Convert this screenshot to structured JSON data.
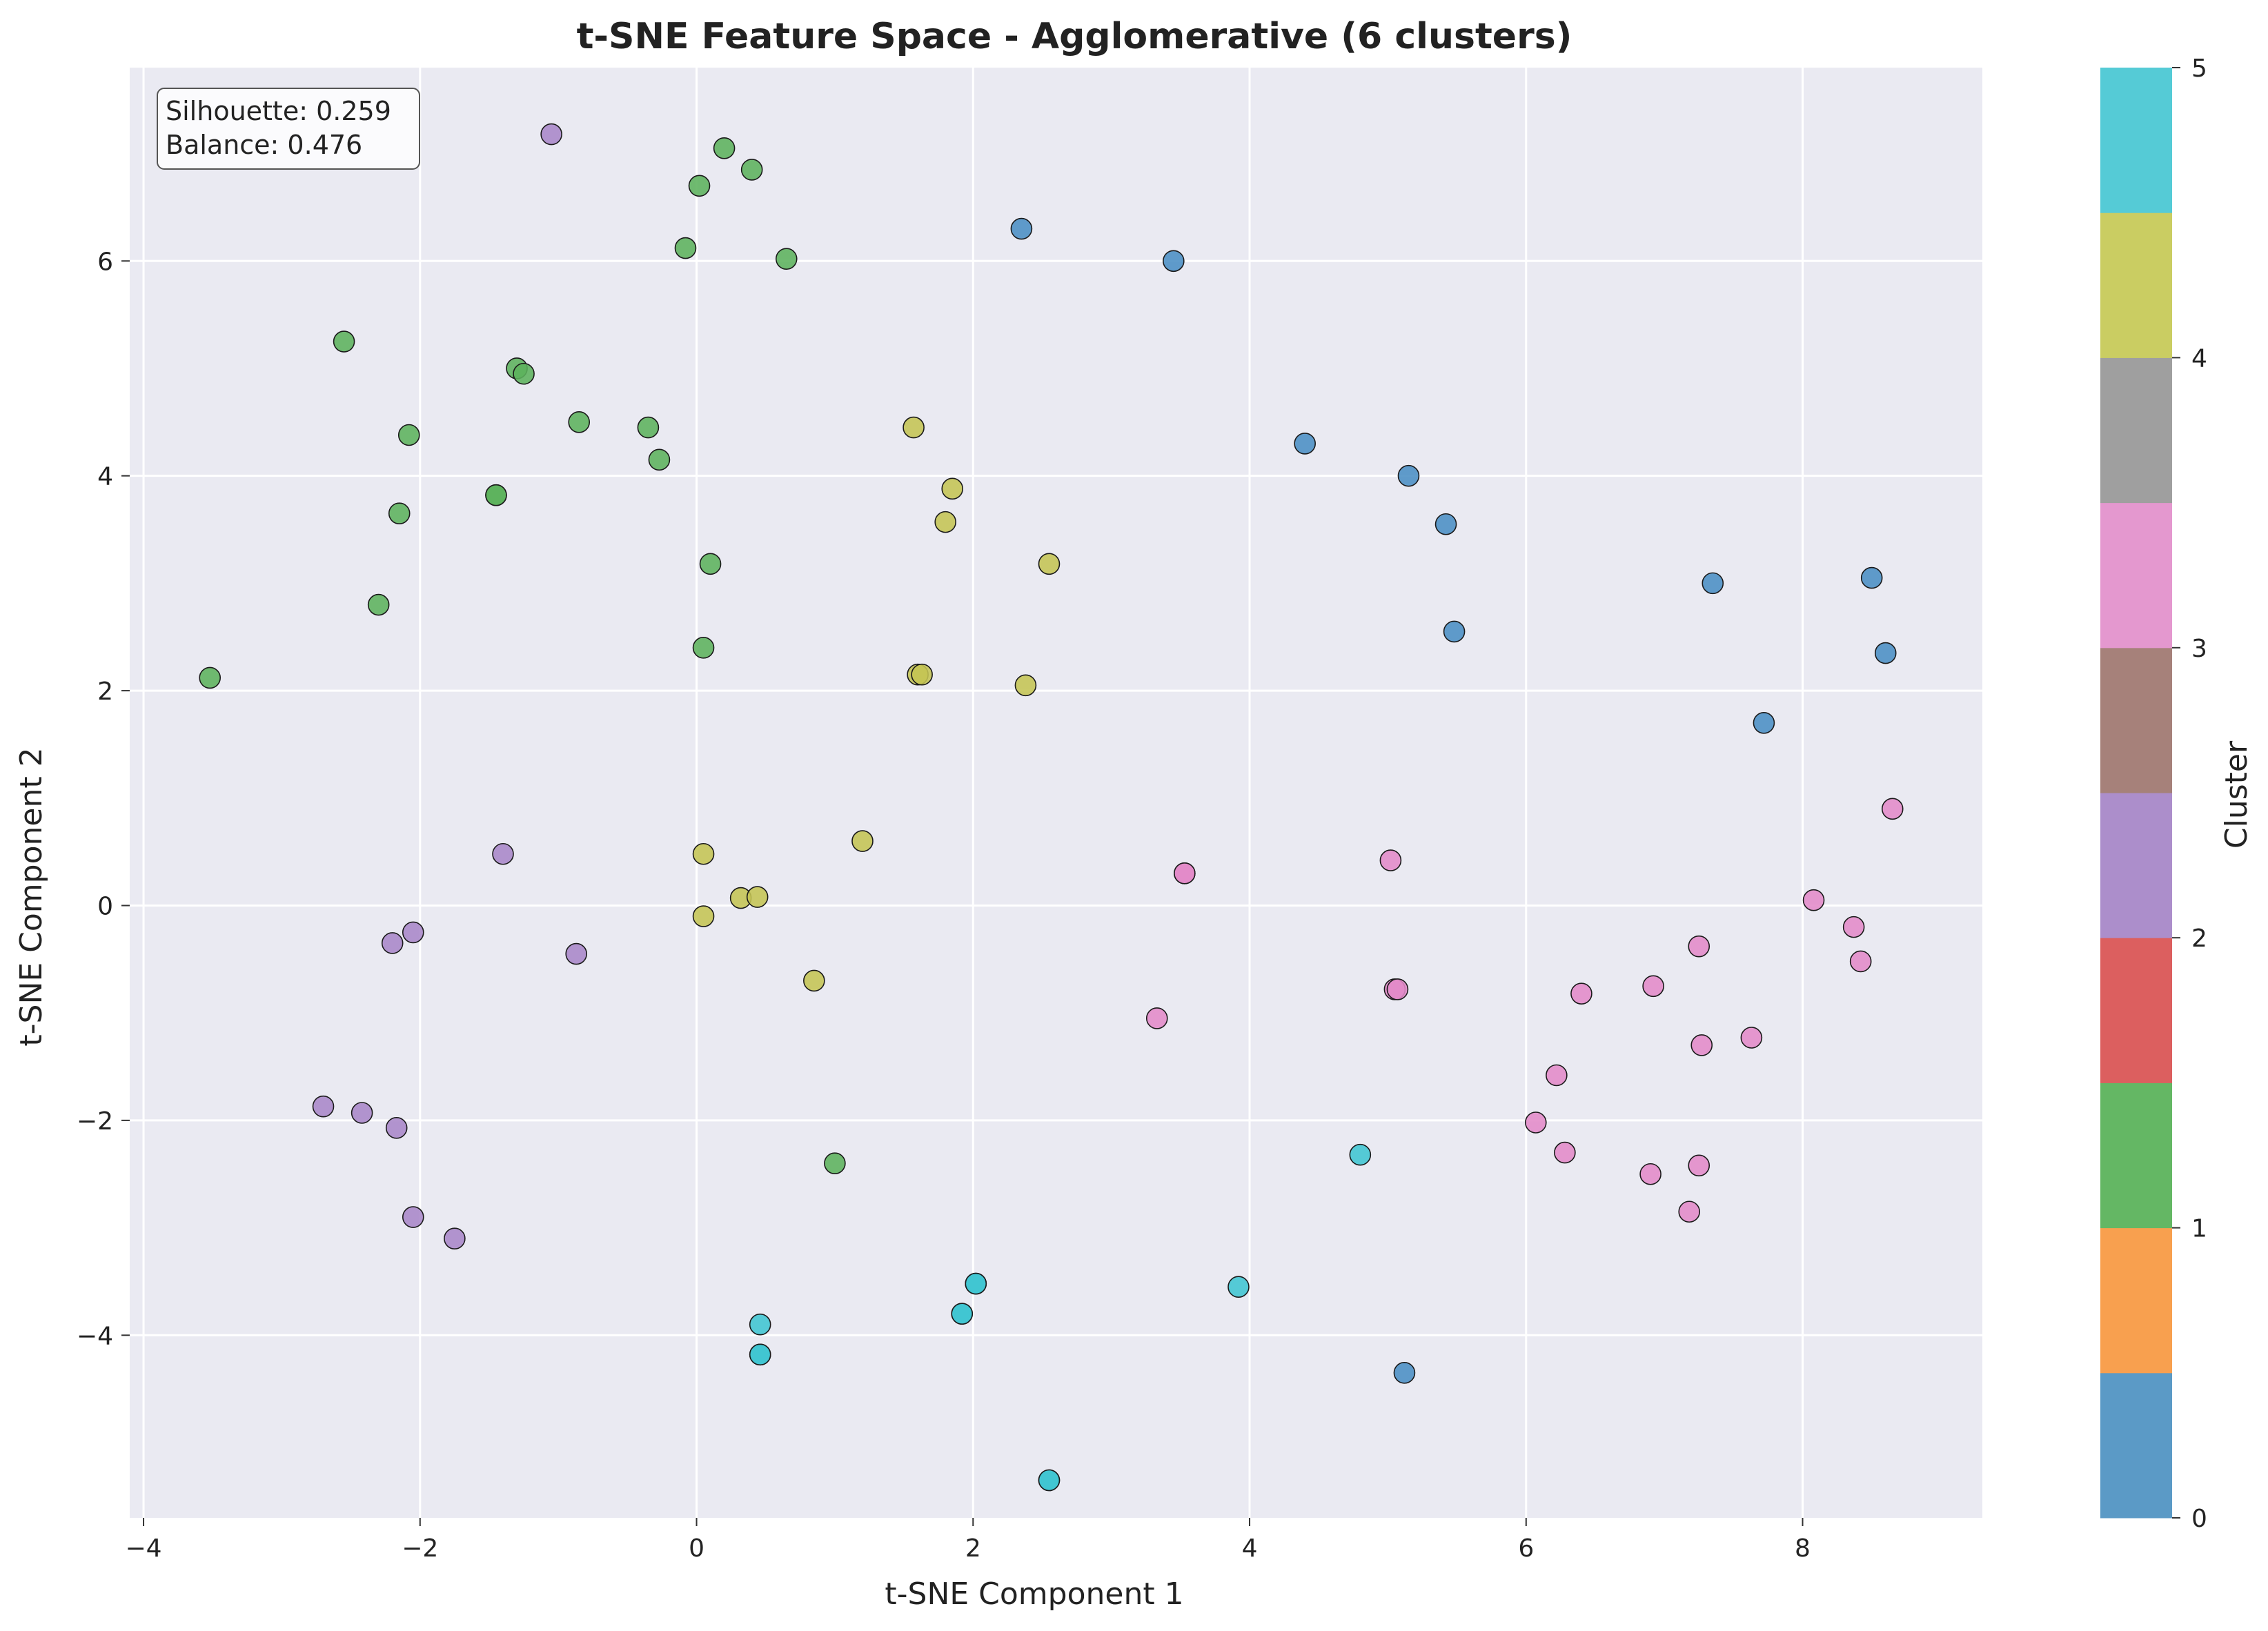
{
  "chart_data": {
    "type": "scatter",
    "title": "t-SNE Feature Space - Agglomerative (6 clusters)",
    "xlabel": "t-SNE Component 1",
    "ylabel": "t-SNE Component 2",
    "xlim": [
      -4.1,
      9.3
    ],
    "ylim": [
      -5.7,
      7.8
    ],
    "xticks": [
      -4,
      -2,
      0,
      2,
      4,
      6,
      8
    ],
    "yticks": [
      -4,
      -2,
      0,
      2,
      4,
      6
    ],
    "grid": true,
    "annotation": [
      "Silhouette: 0.259",
      "Balance: 0.476"
    ],
    "colorbar": {
      "label": "Cluster",
      "ticks": [
        0,
        1,
        2,
        3,
        4,
        5
      ],
      "colors": [
        "#5b9ac6",
        "#f8a04f",
        "#64b764",
        "#dc5f5f",
        "#ac8ecb",
        "#a6817a",
        "#e498cf",
        "#9f9f9f",
        "#cacd62",
        "#55cbd6"
      ]
    },
    "cluster_colors": {
      "0": "#4a8ec4",
      "1": "#5cb25c",
      "2": "#a886c8",
      "3": "#e38ac8",
      "4": "#c4c453",
      "5": "#3fc5d2"
    },
    "series": [
      {
        "cluster": 0,
        "points": [
          [
            2.35,
            6.3
          ],
          [
            3.45,
            6.0
          ],
          [
            4.4,
            4.3
          ],
          [
            5.15,
            4.0
          ],
          [
            5.42,
            3.55
          ],
          [
            5.48,
            2.55
          ],
          [
            7.35,
            3.0
          ],
          [
            8.5,
            3.05
          ],
          [
            8.6,
            2.35
          ],
          [
            7.72,
            1.7
          ],
          [
            5.12,
            -4.35
          ]
        ]
      },
      {
        "cluster": 1,
        "points": [
          [
            0.2,
            7.05
          ],
          [
            0.4,
            6.85
          ],
          [
            0.02,
            6.7
          ],
          [
            -0.08,
            6.12
          ],
          [
            0.65,
            6.02
          ],
          [
            -2.55,
            5.25
          ],
          [
            -1.3,
            5.0
          ],
          [
            -1.25,
            4.95
          ],
          [
            -0.85,
            4.5
          ],
          [
            -0.35,
            4.45
          ],
          [
            -2.08,
            4.38
          ],
          [
            -0.27,
            4.15
          ],
          [
            -1.45,
            3.82
          ],
          [
            -1.45,
            3.82
          ],
          [
            -2.15,
            3.65
          ],
          [
            0.1,
            3.18
          ],
          [
            -2.3,
            2.8
          ],
          [
            0.05,
            2.4
          ],
          [
            -3.52,
            2.12
          ],
          [
            1.0,
            -2.4
          ]
        ]
      },
      {
        "cluster": 2,
        "points": [
          [
            -1.05,
            7.18
          ],
          [
            -1.4,
            0.48
          ],
          [
            -2.2,
            -0.35
          ],
          [
            -2.05,
            -0.25
          ],
          [
            -0.87,
            -0.45
          ],
          [
            -2.7,
            -1.87
          ],
          [
            -2.42,
            -1.93
          ],
          [
            -2.17,
            -2.07
          ],
          [
            -2.05,
            -2.9
          ],
          [
            -1.75,
            -3.1
          ]
        ]
      },
      {
        "cluster": 3,
        "points": [
          [
            8.65,
            0.9
          ],
          [
            5.02,
            0.42
          ],
          [
            3.53,
            0.3
          ],
          [
            3.53,
            0.3
          ],
          [
            8.08,
            0.05
          ],
          [
            8.37,
            -0.2
          ],
          [
            8.42,
            -0.52
          ],
          [
            7.25,
            -0.38
          ],
          [
            5.05,
            -0.78
          ],
          [
            5.07,
            -0.78
          ],
          [
            6.92,
            -0.75
          ],
          [
            6.4,
            -0.82
          ],
          [
            3.33,
            -1.05
          ],
          [
            7.63,
            -1.23
          ],
          [
            7.27,
            -1.3
          ],
          [
            6.22,
            -1.58
          ],
          [
            6.07,
            -2.02
          ],
          [
            6.28,
            -2.3
          ],
          [
            7.25,
            -2.42
          ],
          [
            6.9,
            -2.5
          ],
          [
            7.18,
            -2.85
          ]
        ]
      },
      {
        "cluster": 4,
        "points": [
          [
            1.57,
            4.45
          ],
          [
            1.85,
            3.88
          ],
          [
            1.8,
            3.57
          ],
          [
            2.55,
            3.18
          ],
          [
            1.6,
            2.15
          ],
          [
            1.63,
            2.15
          ],
          [
            2.38,
            2.05
          ],
          [
            1.2,
            0.6
          ],
          [
            0.05,
            0.48
          ],
          [
            0.32,
            0.07
          ],
          [
            0.44,
            0.08
          ],
          [
            0.05,
            -0.1
          ],
          [
            0.85,
            -0.7
          ]
        ]
      },
      {
        "cluster": 5,
        "points": [
          [
            4.8,
            -2.32
          ],
          [
            2.02,
            -3.52
          ],
          [
            2.02,
            -3.52
          ],
          [
            3.92,
            -3.55
          ],
          [
            1.92,
            -3.8
          ],
          [
            1.92,
            -3.8
          ],
          [
            0.46,
            -3.9
          ],
          [
            0.46,
            -4.18
          ],
          [
            0.46,
            -4.18
          ],
          [
            2.55,
            -5.35
          ],
          [
            2.55,
            -5.35
          ]
        ]
      }
    ]
  }
}
